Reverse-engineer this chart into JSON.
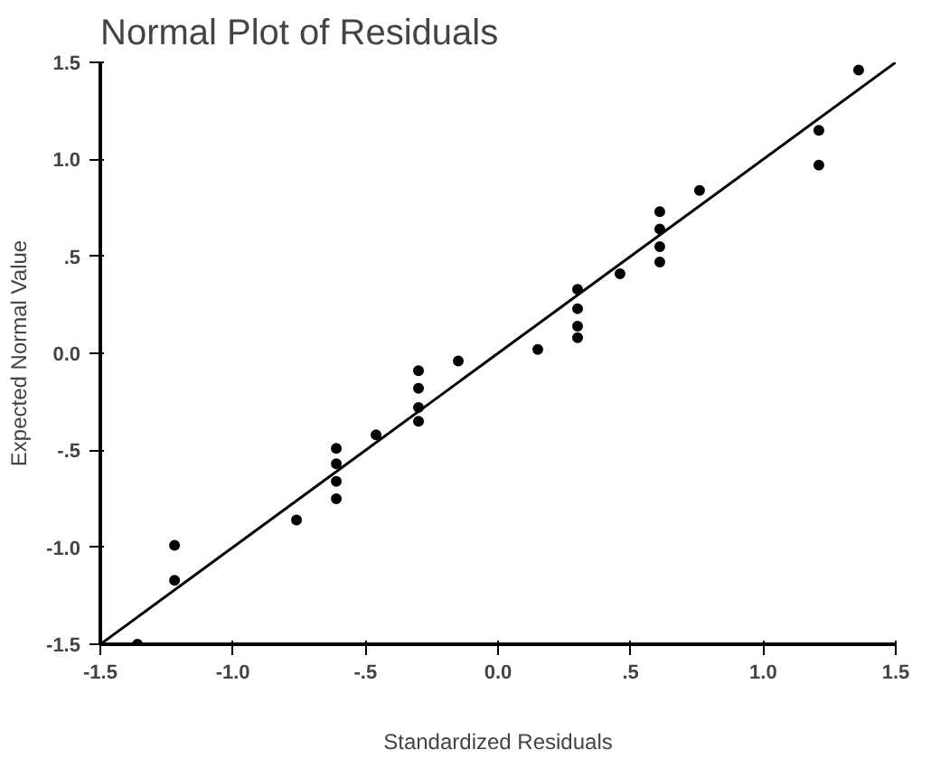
{
  "chart_data": {
    "type": "scatter",
    "title": "Normal Plot of Residuals",
    "xlabel": "Standardized Residuals",
    "ylabel": "Expected Normal Value",
    "xlim": [
      -1.5,
      1.5
    ],
    "ylim": [
      -1.5,
      1.5
    ],
    "xticks": [
      {
        "value": -1.5,
        "label": "-1.5"
      },
      {
        "value": -1.0,
        "label": "-1.0"
      },
      {
        "value": -0.5,
        "label": "-.5"
      },
      {
        "value": 0.0,
        "label": "0.0"
      },
      {
        "value": 0.5,
        "label": ".5"
      },
      {
        "value": 1.0,
        "label": "1.0"
      },
      {
        "value": 1.5,
        "label": "1.5"
      }
    ],
    "yticks": [
      {
        "value": -1.5,
        "label": "-1.5"
      },
      {
        "value": -1.0,
        "label": "-1.0"
      },
      {
        "value": -0.5,
        "label": "-.5"
      },
      {
        "value": 0.0,
        "label": "0.0"
      },
      {
        "value": 0.5,
        "label": ".5"
      },
      {
        "value": 1.0,
        "label": "1.0"
      },
      {
        "value": 1.5,
        "label": "1.5"
      }
    ],
    "grid": false,
    "marker": "circle",
    "series": [
      {
        "color": "#000000",
        "x": [
          -1.36,
          -1.22,
          -1.22,
          -0.76,
          -0.61,
          -0.61,
          -0.61,
          -0.61,
          -0.46,
          -0.3,
          -0.3,
          -0.3,
          -0.3,
          -0.15,
          0.15,
          0.3,
          0.3,
          0.3,
          0.3,
          0.46,
          0.61,
          0.61,
          0.61,
          0.61,
          0.76,
          1.21,
          1.21,
          1.36
        ],
        "values": [
          -1.5,
          -0.99,
          -1.17,
          -0.86,
          -0.49,
          -0.57,
          -0.66,
          -0.75,
          -0.42,
          -0.09,
          -0.18,
          -0.28,
          -0.35,
          -0.04,
          0.02,
          0.33,
          0.23,
          0.14,
          0.08,
          0.41,
          0.73,
          0.64,
          0.55,
          0.47,
          0.84,
          1.15,
          0.97,
          1.46
        ]
      },
      {
        "type": "line",
        "color": "#000000",
        "line_style": "solid",
        "marker": "none",
        "x": [
          -1.5,
          1.5
        ],
        "values": [
          -1.5,
          1.5
        ]
      }
    ]
  }
}
